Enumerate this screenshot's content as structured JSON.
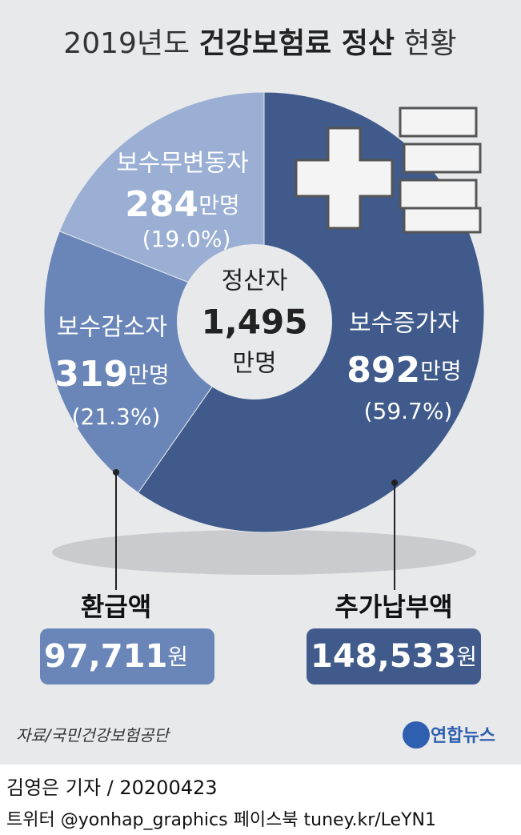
{
  "chart_data": {
    "type": "pie",
    "title": {
      "prefix": "2019년도",
      "bold": "건강보험료 정산",
      "suffix": "현황"
    },
    "center_label": {
      "top": "정산자",
      "number": "1,495",
      "unit": "만명"
    },
    "categories": [
      "보수증가자",
      "보수감소자",
      "보수무변동자"
    ],
    "values": [
      59.7,
      21.3,
      19.0
    ],
    "value_labels": [
      "(59.7%)",
      "(21.3%)",
      "(19.0%)"
    ],
    "counts": [
      892,
      319,
      284
    ],
    "unit": "만명",
    "colors": [
      "#3f5a8b",
      "#6a86b9",
      "#9aafd3"
    ],
    "amounts": [
      {
        "label": "환급액",
        "value": "97,711",
        "unit": "원",
        "color": "#6a86b9"
      },
      {
        "label": "추가납부액",
        "value": "148,533",
        "unit": "원",
        "color": "#3f5a8b"
      }
    ],
    "source": "자료/국민건강보험공단",
    "logo": "연합뉴스",
    "credit": "김영은 기자 / 20200423",
    "footer": "트위터 @yonhap_graphics  페이스북 tuney.kr/LeYN1"
  }
}
